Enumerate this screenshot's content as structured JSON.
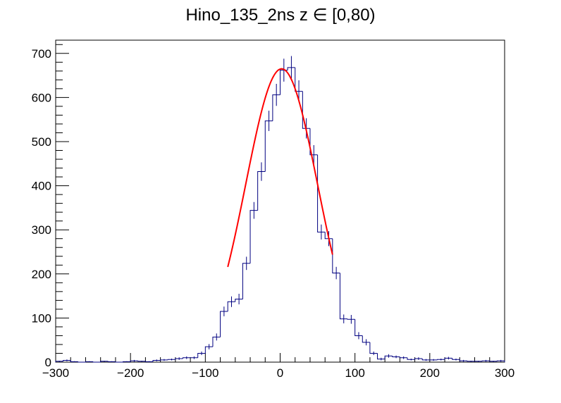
{
  "chart_data": {
    "type": "histogram",
    "title": "Hino_135_2ns z  ∈ [0,80)",
    "xlabel": "",
    "ylabel": "",
    "xlim": [
      -300,
      300
    ],
    "ylim": [
      0,
      730
    ],
    "x_ticks": [
      -300,
      -200,
      -100,
      0,
      100,
      200,
      300
    ],
    "y_ticks": [
      0,
      100,
      200,
      300,
      400,
      500,
      600,
      700
    ],
    "grid": false,
    "legend": "none",
    "colors": {
      "histogram": "#000080",
      "fit": "#ff0000",
      "axes": "#000000"
    },
    "bin_width": 10,
    "bin_edges_start": -300,
    "counts": [
      2,
      4,
      1,
      0,
      1,
      0,
      2,
      1,
      0,
      1,
      3,
      2,
      1,
      4,
      5,
      6,
      8,
      10,
      10,
      20,
      35,
      57,
      115,
      137,
      143,
      224,
      344,
      432,
      547,
      606,
      662,
      668,
      614,
      530,
      470,
      295,
      280,
      202,
      98,
      97,
      60,
      45,
      20,
      7,
      14,
      12,
      10,
      6,
      8,
      5,
      5,
      6,
      9,
      6,
      3,
      2,
      2,
      3,
      2,
      3
    ],
    "errors": [
      1,
      2,
      1,
      0,
      1,
      0,
      1,
      1,
      0,
      1,
      2,
      1,
      1,
      2,
      2,
      2,
      3,
      3,
      3,
      4,
      6,
      8,
      11,
      12,
      12,
      15,
      19,
      21,
      23,
      25,
      26,
      26,
      25,
      23,
      22,
      17,
      17,
      14,
      10,
      10,
      8,
      7,
      4,
      3,
      4,
      3,
      3,
      2,
      3,
      2,
      2,
      2,
      3,
      2,
      2,
      1,
      1,
      2,
      1,
      2
    ],
    "fit": {
      "function": "gaus",
      "constant": 665,
      "mean": 2,
      "sigma": 48,
      "x_range": [
        -70,
        70
      ]
    }
  }
}
